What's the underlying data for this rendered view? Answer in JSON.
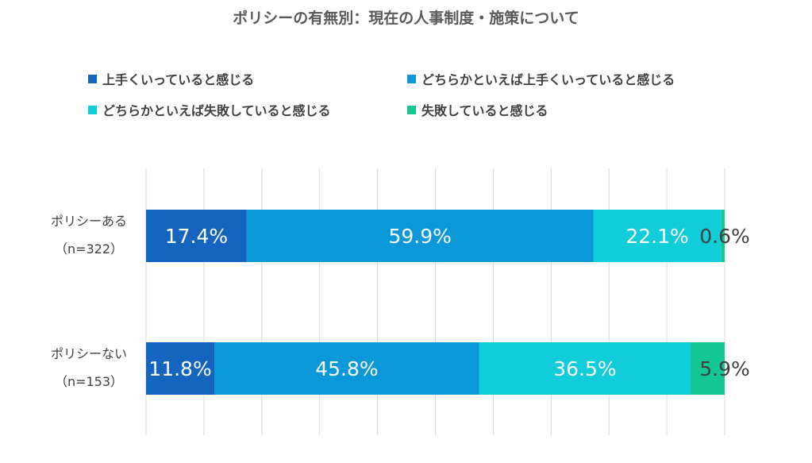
{
  "chart_data": {
    "type": "bar",
    "orientation": "horizontal",
    "stacked": true,
    "percent_stacked": true,
    "title": "ポリシーの有無別：現在の人事制度・施策について",
    "categories": [
      {
        "label": "ポリシーある",
        "sublabel": "（n=322）"
      },
      {
        "label": "ポリシーない",
        "sublabel": "（n=153）"
      }
    ],
    "series": [
      {
        "name": "上手くいっていると感じる",
        "color": "#1565C0",
        "values": [
          17.4,
          11.8
        ],
        "labels": [
          "17.4%",
          "11.8%"
        ]
      },
      {
        "name": "どちらかといえば上手くいっていると感じる",
        "color": "#0A98D8",
        "values": [
          59.9,
          45.8
        ],
        "labels": [
          "59.9%",
          "45.8%"
        ]
      },
      {
        "name": "どちらかといえば失敗していると感じる",
        "color": "#11CCD9",
        "values": [
          22.1,
          36.5
        ],
        "labels": [
          "22.1%",
          "36.5%"
        ]
      },
      {
        "name": "失敗していると感じる",
        "color": "#12C792",
        "values": [
          0.6,
          5.9
        ],
        "labels": [
          "0.6%",
          "5.9%"
        ]
      }
    ],
    "xlim": [
      0,
      100
    ],
    "grid": true,
    "legend_position": "top"
  }
}
